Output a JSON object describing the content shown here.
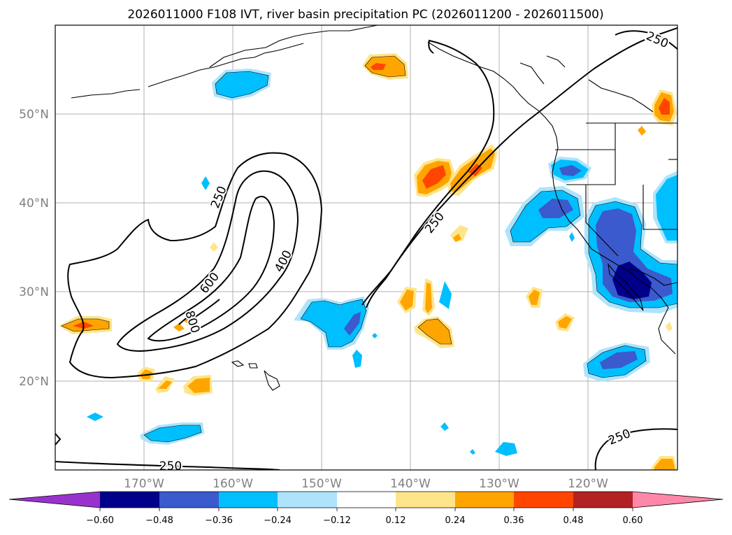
{
  "title": "2026011000 F108 IVT, river basin precipitation PC (2026011200 - 2026011500)",
  "map": {
    "lon_range": [
      -180,
      -110
    ],
    "lat_range": [
      10,
      60
    ],
    "lat_ticks": [
      {
        "lat": 20,
        "label": "20°N"
      },
      {
        "lat": 30,
        "label": "30°N"
      },
      {
        "lat": 40,
        "label": "40°N"
      },
      {
        "lat": 50,
        "label": "50°N"
      }
    ],
    "lon_ticks": [
      {
        "lon": -170,
        "label": "170°W"
      },
      {
        "lon": -160,
        "label": "160°W"
      },
      {
        "lon": -150,
        "label": "150°W"
      },
      {
        "lon": -140,
        "label": "140°W"
      },
      {
        "lon": -130,
        "label": "130°W"
      },
      {
        "lon": -120,
        "label": "120°W"
      }
    ],
    "ivt_contour_labels": [
      "250",
      "250",
      "250",
      "250",
      "400",
      "600",
      "800"
    ]
  },
  "colorbar": {
    "ticks": [
      "−0.60",
      "−0.48",
      "−0.36",
      "−0.24",
      "−0.12",
      "0.12",
      "0.24",
      "0.36",
      "0.48",
      "0.60"
    ],
    "colors": {
      "under": "#9932cc",
      "n060": "#00008b",
      "n048": "#3a5acd",
      "n036": "#00bfff",
      "n024": "#ade4fc",
      "n012": "#ffffff",
      "p012": "#ffe58a",
      "p024": "#ffa500",
      "p036": "#ff4500",
      "p048": "#b22222",
      "over": "#ff88aa"
    }
  }
}
